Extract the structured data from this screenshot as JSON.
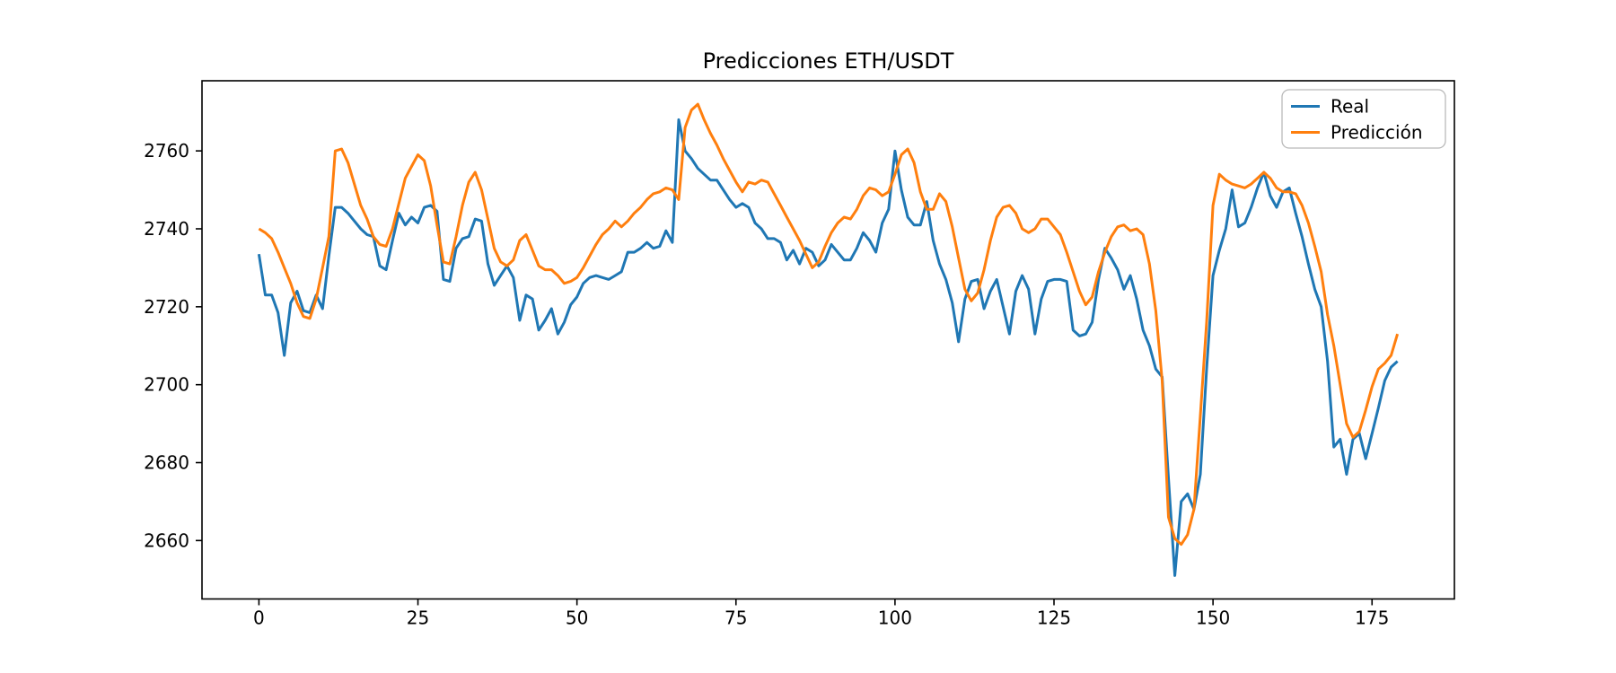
{
  "figure": {
    "title": "Predicciones ETH/USDT",
    "background_color": "#ffffff"
  },
  "chart_data": {
    "type": "line",
    "title": "Predicciones ETH/USDT",
    "xlabel": "",
    "ylabel": "",
    "grid": false,
    "legend_position": "upper right",
    "x_ticks": [
      0,
      25,
      50,
      75,
      100,
      125,
      150,
      175
    ],
    "y_ticks": [
      2660,
      2680,
      2700,
      2720,
      2740,
      2760
    ],
    "xlim": [
      -8.95,
      187.95
    ],
    "ylim": [
      2645,
      2778
    ],
    "x_start": 0,
    "x_step": 1,
    "series": [
      {
        "name": "Real",
        "color": "#1f77b4",
        "values": [
          2733.5,
          2723,
          2723,
          2718.5,
          2707.5,
          2721,
          2724,
          2719,
          2718.5,
          2723,
          2719.5,
          2733,
          2745.5,
          2745.5,
          2744,
          2742,
          2740,
          2738.5,
          2738,
          2730.5,
          2729.5,
          2737,
          2744,
          2741,
          2743,
          2741.5,
          2745.5,
          2746,
          2744.5,
          2727,
          2726.5,
          2735,
          2737.5,
          2738,
          2742.5,
          2742,
          2731,
          2725.5,
          2728,
          2730.5,
          2727.5,
          2716.5,
          2723,
          2722,
          2714,
          2716.5,
          2719.5,
          2713,
          2716,
          2720.5,
          2722.5,
          2726,
          2727.5,
          2728,
          2727.5,
          2727,
          2728,
          2729,
          2734,
          2734,
          2735,
          2736.5,
          2735,
          2735.5,
          2739.5,
          2736.5,
          2768,
          2760,
          2758,
          2755.5,
          2754,
          2752.5,
          2752.5,
          2750,
          2747.5,
          2745.5,
          2746.5,
          2745.5,
          2741.5,
          2740,
          2737.5,
          2737.5,
          2736.5,
          2732,
          2734.5,
          2731,
          2735,
          2734,
          2730.5,
          2732,
          2736,
          2734,
          2732,
          2732,
          2735,
          2739,
          2737,
          2734,
          2741.5,
          2745,
          2760,
          2750,
          2743,
          2741,
          2741,
          2747,
          2737,
          2731,
          2727,
          2721,
          2711,
          2722,
          2726.5,
          2727,
          2719.5,
          2724,
          2727,
          2720,
          2713,
          2724,
          2728,
          2724.5,
          2713,
          2722,
          2726.5,
          2727,
          2727,
          2726.5,
          2714,
          2712.5,
          2713,
          2716,
          2727,
          2735,
          2732.5,
          2729.5,
          2724.5,
          2728,
          2722,
          2714,
          2710,
          2704,
          2702,
          2676,
          2651,
          2670,
          2672,
          2668,
          2677,
          2704,
          2728,
          2734.5,
          2740,
          2750,
          2740.5,
          2741.5,
          2745.5,
          2750.5,
          2754.5,
          2748.5,
          2745.5,
          2749.5,
          2750.5,
          2744,
          2738,
          2731,
          2724.5,
          2720,
          2706,
          2684,
          2686,
          2677,
          2686,
          2687.5,
          2681,
          2687.5,
          2694,
          2701,
          2704.5,
          2706
        ]
      },
      {
        "name": "Predicción",
        "color": "#ff7f0e",
        "values": [
          2740,
          2739,
          2737.5,
          2734,
          2730,
          2726,
          2721,
          2717.5,
          2717,
          2722,
          2730,
          2738,
          2760,
          2760.5,
          2757,
          2751.5,
          2746,
          2742.5,
          2738,
          2736,
          2735.5,
          2740,
          2746.5,
          2753,
          2756,
          2759,
          2757.5,
          2751,
          2741,
          2731.5,
          2731,
          2738,
          2746,
          2752,
          2754.5,
          2750,
          2742.5,
          2735,
          2731.5,
          2730.5,
          2732,
          2737,
          2738.5,
          2734.5,
          2730.5,
          2729.5,
          2729.5,
          2728,
          2726,
          2726.5,
          2727.5,
          2730,
          2733,
          2736,
          2738.5,
          2740,
          2742,
          2740.5,
          2742,
          2744,
          2745.5,
          2747.5,
          2749,
          2749.5,
          2750.5,
          2750,
          2747.5,
          2766,
          2770.5,
          2772,
          2768,
          2764.5,
          2761.5,
          2758,
          2755,
          2752,
          2749.5,
          2752,
          2751.5,
          2752.5,
          2752,
          2749,
          2746,
          2743,
          2740,
          2737,
          2733.5,
          2730,
          2731.5,
          2735.5,
          2739,
          2741.5,
          2743,
          2742.5,
          2745,
          2748.5,
          2750.5,
          2750,
          2748.5,
          2749.5,
          2754,
          2759,
          2760.5,
          2757,
          2749.5,
          2745,
          2745,
          2749,
          2747,
          2740.5,
          2732.5,
          2724.5,
          2721.5,
          2723.5,
          2729.5,
          2737,
          2743,
          2745.5,
          2746,
          2744,
          2740,
          2739,
          2740,
          2742.5,
          2742.5,
          2740.5,
          2738.5,
          2734,
          2729,
          2724,
          2720.5,
          2722.5,
          2729,
          2734,
          2738,
          2740.5,
          2741,
          2739.5,
          2740,
          2738.5,
          2731,
          2719,
          2701,
          2666,
          2660.5,
          2659,
          2661.5,
          2668,
          2692,
          2716,
          2746,
          2754,
          2752.5,
          2751.5,
          2751,
          2750.5,
          2751.5,
          2753,
          2754.5,
          2753,
          2750.5,
          2749.5,
          2749.5,
          2749,
          2746,
          2741.5,
          2735.5,
          2729,
          2718,
          2710,
          2700,
          2690,
          2686.5,
          2688,
          2693.5,
          2699.5,
          2704,
          2705.5,
          2707.5,
          2713
        ]
      }
    ]
  }
}
